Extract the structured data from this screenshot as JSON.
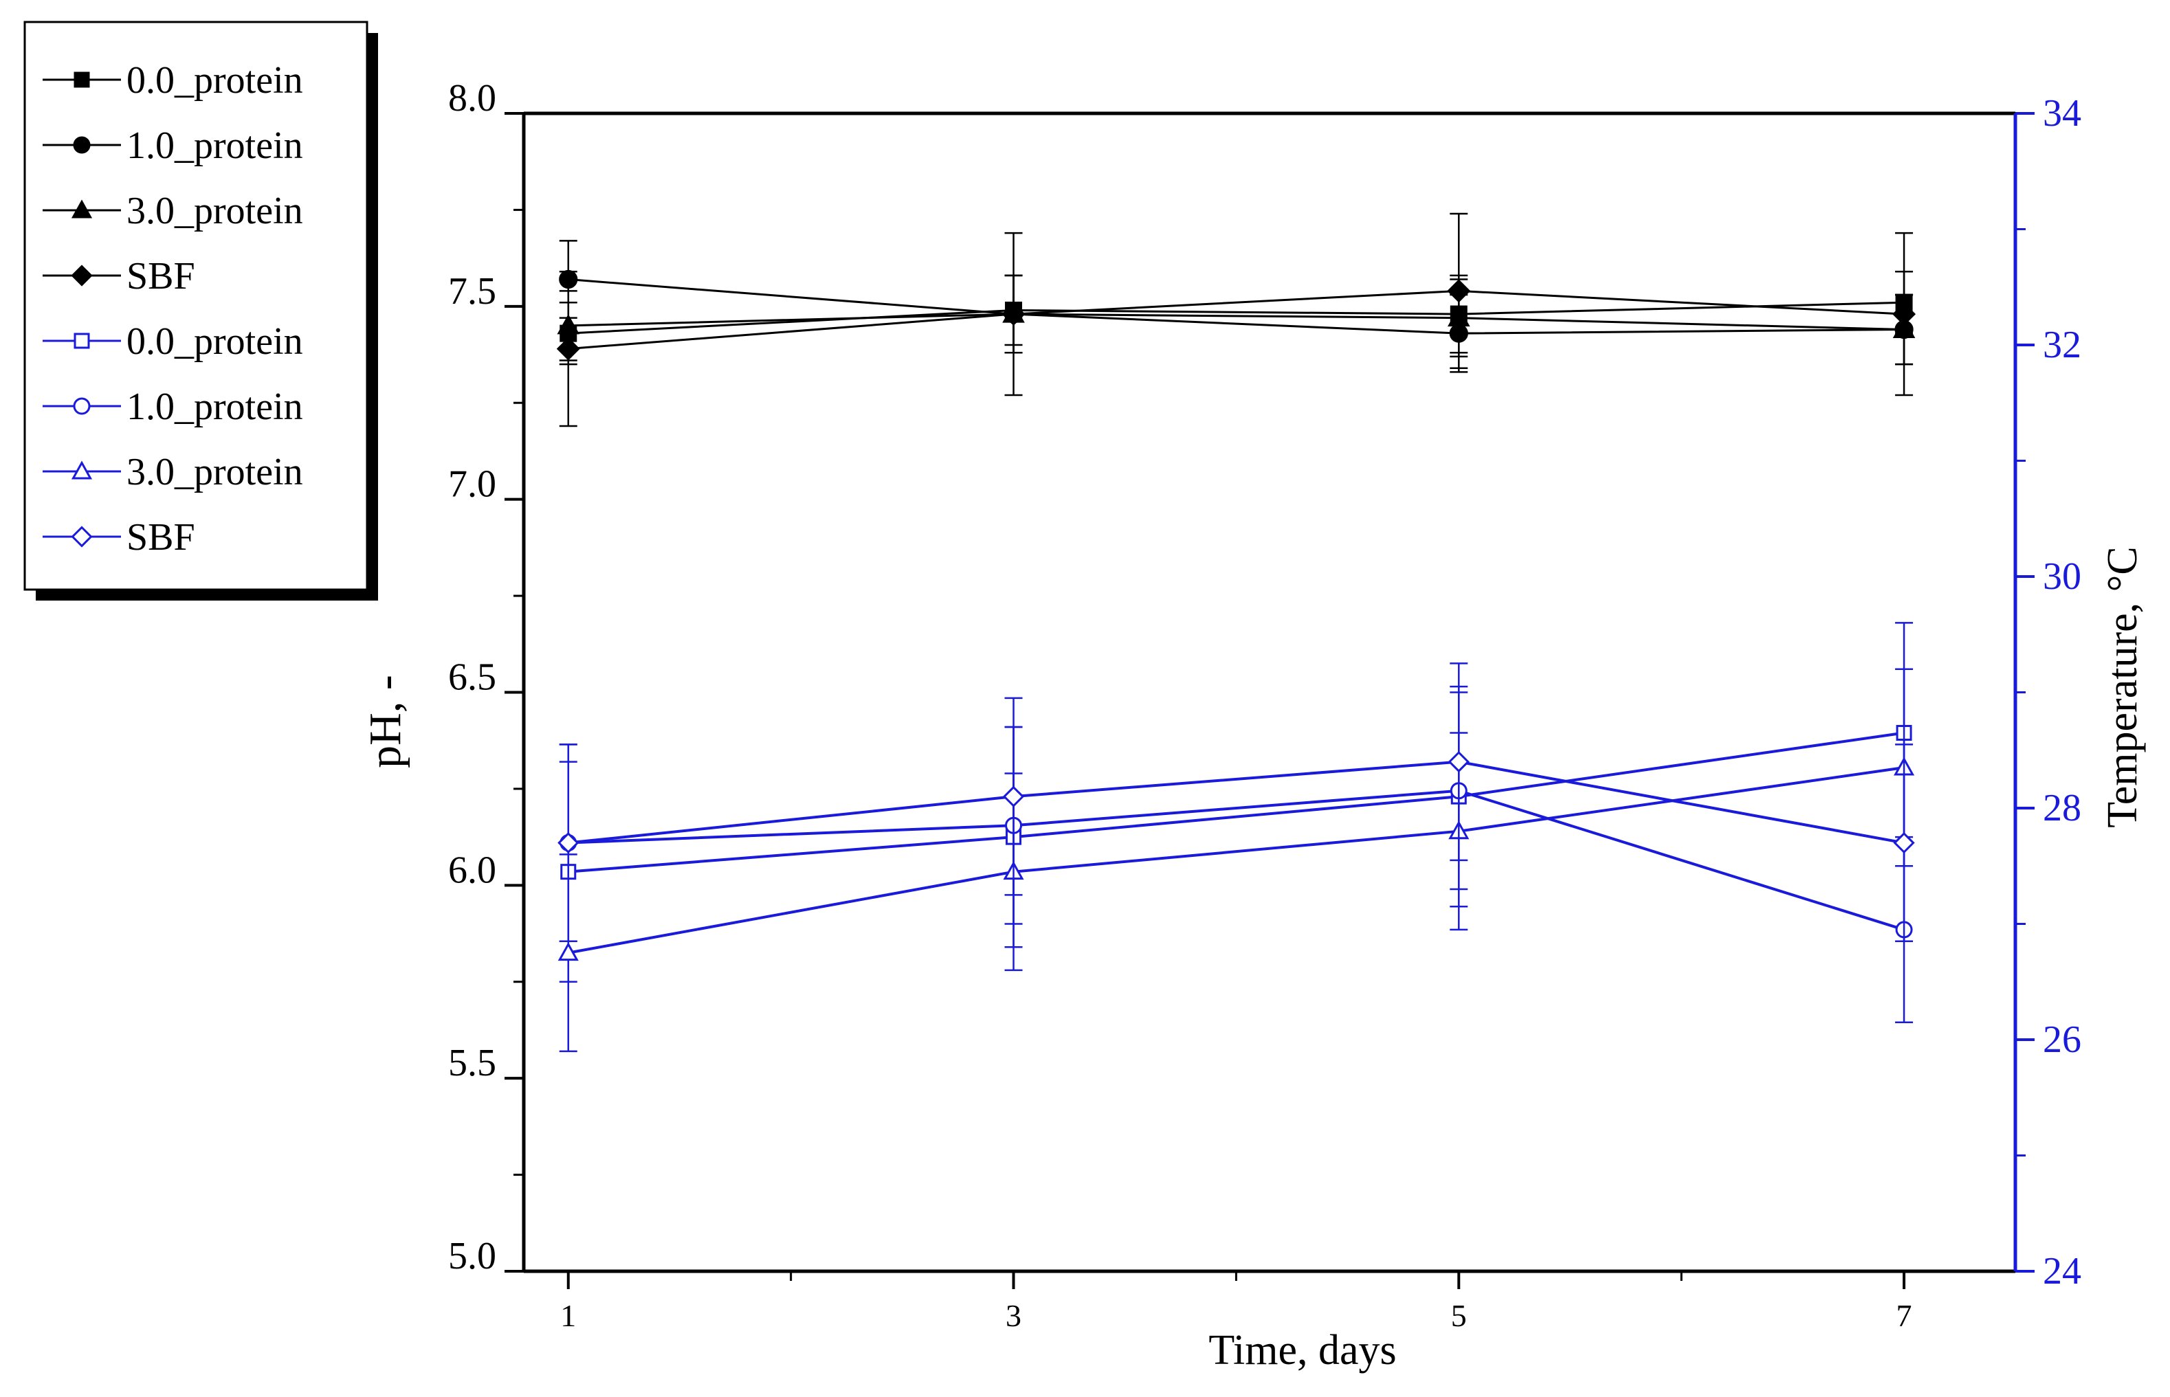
{
  "chart_data": {
    "type": "line",
    "x": [
      1,
      3,
      5,
      7
    ],
    "xlabel": "Time, days",
    "ylabel_left": "pH, -",
    "ylabel_right": "Temperature, °C",
    "x_ticks": [
      "1",
      "3",
      "5",
      "7"
    ],
    "y_left_ticks": [
      "5.0",
      "5.5",
      "6.0",
      "6.5",
      "7.0",
      "7.5",
      "8.0"
    ],
    "y_right_ticks": [
      "24",
      "26",
      "28",
      "30",
      "32",
      "34"
    ],
    "xlim": [
      0.8,
      7.5
    ],
    "ylim_left": [
      5.0,
      8.0
    ],
    "ylim_right": [
      24,
      34
    ],
    "legend_position": "outside top-left",
    "colors": {
      "ph": "#000000",
      "temperature": "#1a1adb",
      "frame": "#000000"
    },
    "series": [
      {
        "name": "0.0_protein",
        "group": "ph",
        "marker": "square",
        "filled": true,
        "values": [
          7.43,
          7.49,
          7.48,
          7.51
        ],
        "errors": [
          0.08,
          0.09,
          0.1,
          0.08
        ]
      },
      {
        "name": "1.0_protein",
        "group": "ph",
        "marker": "circle",
        "filled": true,
        "values": [
          7.57,
          7.48,
          7.43,
          7.44
        ],
        "errors": [
          0.1,
          0.1,
          0.1,
          0.09
        ]
      },
      {
        "name": "3.0_protein",
        "group": "ph",
        "marker": "triangle",
        "filled": true,
        "values": [
          7.45,
          7.48,
          7.47,
          7.44
        ],
        "errors": [
          0.09,
          0.1,
          0.1,
          0.09
        ]
      },
      {
        "name": "SBF",
        "group": "ph",
        "marker": "diamond",
        "filled": true,
        "values": [
          7.39,
          7.48,
          7.54,
          7.48
        ],
        "errors": [
          0.2,
          0.21,
          0.2,
          0.21
        ]
      },
      {
        "name": "0.0_protein",
        "group": "temperature",
        "marker": "square",
        "filled": false,
        "values": [
          27.45,
          27.75,
          28.1,
          28.65
        ],
        "errors": [
          0.95,
          0.95,
          0.95,
          0.95
        ]
      },
      {
        "name": "1.0_protein",
        "group": "temperature",
        "marker": "circle",
        "filled": false,
        "values": [
          27.7,
          27.85,
          28.15,
          26.95
        ],
        "errors": [
          0.85,
          0.85,
          0.85,
          0.8
        ]
      },
      {
        "name": "3.0_protein",
        "group": "temperature",
        "marker": "triangle",
        "filled": false,
        "values": [
          26.75,
          27.45,
          27.8,
          28.35
        ],
        "errors": [
          0.85,
          0.85,
          0.85,
          0.85
        ]
      },
      {
        "name": "SBF",
        "group": "temperature",
        "marker": "diamond",
        "filled": false,
        "values": [
          27.7,
          28.1,
          28.4,
          27.7
        ],
        "errors": [
          0.85,
          0.85,
          0.85,
          0.85
        ]
      }
    ]
  }
}
